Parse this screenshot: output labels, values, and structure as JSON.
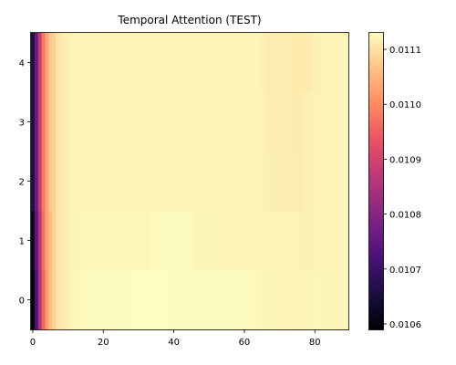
{
  "chart_data": {
    "type": "heatmap",
    "title": "Temporal Attention (TEST)",
    "xlabel": "",
    "ylabel": "",
    "colormap": "magma",
    "x_range": [
      -0.5,
      89.5
    ],
    "y_range": [
      -0.5,
      4.5
    ],
    "xlim": [
      -0.5,
      89.5
    ],
    "ylim": [
      -0.5,
      4.5
    ],
    "x_ticks": [
      0,
      20,
      40,
      60,
      80
    ],
    "y_ticks": [
      0,
      1,
      2,
      3,
      4
    ],
    "colorbar": {
      "min": 0.01059,
      "max": 0.01113,
      "ticks": [
        0.0106,
        0.0107,
        0.0108,
        0.0109,
        0.011,
        0.0111
      ],
      "tick_labels": [
        "0.0106",
        "0.0107",
        "0.0108",
        "0.0109",
        "0.0110",
        "0.0111"
      ]
    },
    "n_cols": 90,
    "rows": [
      {
        "row": 0,
        "profile": [
          [
            0,
            0.0106
          ],
          [
            1,
            0.01072
          ],
          [
            2,
            0.01085
          ],
          [
            3,
            0.01096
          ],
          [
            4,
            0.01102
          ],
          [
            5,
            0.01106
          ],
          [
            6,
            0.01108
          ],
          [
            7,
            0.0111
          ],
          [
            9,
            0.01111
          ],
          [
            12,
            0.011125
          ],
          [
            30,
            0.01113
          ],
          [
            62,
            0.011128
          ],
          [
            64,
            0.011122
          ],
          [
            78,
            0.01112
          ],
          [
            80,
            0.011122
          ],
          [
            89,
            0.01112
          ]
        ]
      },
      {
        "row": 1,
        "profile": [
          [
            0,
            0.01062
          ],
          [
            1,
            0.01074
          ],
          [
            2,
            0.01086
          ],
          [
            3,
            0.01097
          ],
          [
            4,
            0.01103
          ],
          [
            5,
            0.01106
          ],
          [
            6,
            0.01108
          ],
          [
            7,
            0.0111
          ],
          [
            9,
            0.01111
          ],
          [
            12,
            0.011122
          ],
          [
            33,
            0.011122
          ],
          [
            34,
            0.011126
          ],
          [
            45,
            0.011126
          ],
          [
            46,
            0.011122
          ],
          [
            78,
            0.011118
          ],
          [
            89,
            0.01112
          ]
        ]
      },
      {
        "row": 2,
        "profile": [
          [
            0,
            0.01066
          ],
          [
            1,
            0.01076
          ],
          [
            2,
            0.01088
          ],
          [
            3,
            0.01098
          ],
          [
            4,
            0.01103
          ],
          [
            5,
            0.01107
          ],
          [
            6,
            0.01108
          ],
          [
            7,
            0.0111
          ],
          [
            9,
            0.01111
          ],
          [
            12,
            0.01112
          ],
          [
            64,
            0.01112
          ],
          [
            67,
            0.011115
          ],
          [
            76,
            0.01111
          ],
          [
            78,
            0.011118
          ],
          [
            89,
            0.01112
          ]
        ]
      },
      {
        "row": 3,
        "profile": [
          [
            0,
            0.01066
          ],
          [
            1,
            0.01076
          ],
          [
            2,
            0.01088
          ],
          [
            3,
            0.01098
          ],
          [
            4,
            0.01103
          ],
          [
            5,
            0.01107
          ],
          [
            6,
            0.01108
          ],
          [
            7,
            0.0111
          ],
          [
            9,
            0.01111
          ],
          [
            12,
            0.01112
          ],
          [
            64,
            0.01112
          ],
          [
            67,
            0.011113
          ],
          [
            76,
            0.01111
          ],
          [
            78,
            0.011118
          ],
          [
            89,
            0.01112
          ]
        ]
      },
      {
        "row": 4,
        "profile": [
          [
            0,
            0.01066
          ],
          [
            1,
            0.01076
          ],
          [
            2,
            0.01088
          ],
          [
            3,
            0.01098
          ],
          [
            4,
            0.01103
          ],
          [
            5,
            0.01107
          ],
          [
            6,
            0.01108
          ],
          [
            7,
            0.0111
          ],
          [
            9,
            0.01111
          ],
          [
            12,
            0.01112
          ],
          [
            64,
            0.01112
          ],
          [
            66,
            0.011112
          ],
          [
            78,
            0.01111
          ],
          [
            80,
            0.011118
          ],
          [
            89,
            0.01112
          ]
        ]
      }
    ]
  }
}
